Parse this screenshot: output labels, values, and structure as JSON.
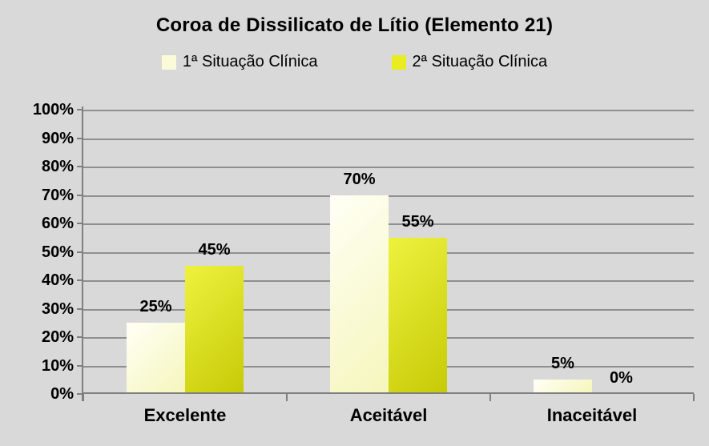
{
  "chart_data": {
    "type": "bar",
    "title": "Coroa de Dissilicato de Lítio (Elemento 21)",
    "categories": [
      "Excelente",
      "Aceitável",
      "Inaceitável"
    ],
    "series": [
      {
        "name": "1ª Situação Clínica",
        "values": [
          25,
          70,
          5
        ],
        "data_labels": [
          "25%",
          "70%",
          "5%"
        ],
        "swatch": "#fbfbd8",
        "fill_start": "#fffff6",
        "fill_end": "#f5f6bb"
      },
      {
        "name": "2ª Situação Clínica",
        "values": [
          45,
          55,
          0
        ],
        "data_labels": [
          "45%",
          "55%",
          "0%"
        ],
        "swatch": "#e8ec20",
        "fill_start": "#eef23e",
        "fill_end": "#c6ca06"
      }
    ],
    "xlabel": "",
    "ylabel": "",
    "ylim": [
      0,
      100
    ],
    "yticks": [
      0,
      10,
      20,
      30,
      40,
      50,
      60,
      70,
      80,
      90,
      100
    ],
    "ytick_labels": [
      "0%",
      "10%",
      "20%",
      "30%",
      "40%",
      "50%",
      "60%",
      "70%",
      "80%",
      "90%",
      "100%"
    ],
    "grid": true,
    "legend_position": "top",
    "background_color": "#d9d9d9",
    "gridline_color": "#8f8f8f",
    "axis_color": "#7f7f7f",
    "text_color": "#000000"
  }
}
